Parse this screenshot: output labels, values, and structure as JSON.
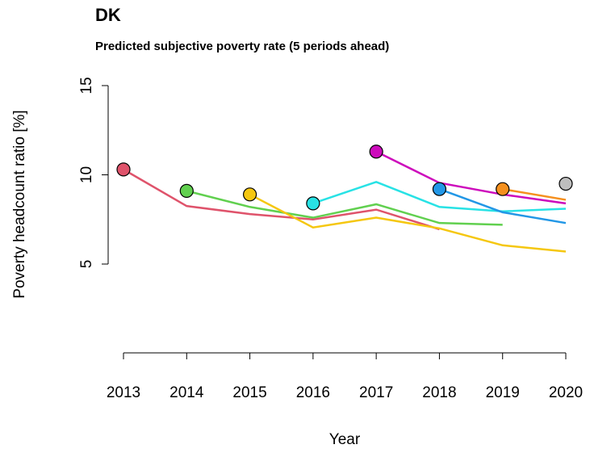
{
  "chart_data": {
    "type": "line",
    "title": "DK",
    "subtitle": "Predicted subjective poverty rate (5 periods ahead)",
    "x_label": "Year",
    "y_label": "Poverty headcount ratio [%]",
    "x": [
      2013,
      2014,
      2015,
      2016,
      2017,
      2018,
      2019,
      2020
    ],
    "xlim": [
      2013,
      2020
    ],
    "xticks": [
      2013,
      2014,
      2015,
      2016,
      2017,
      2018,
      2019,
      2020
    ],
    "ylim": [
      0,
      15
    ],
    "yticks": [
      5,
      10,
      15
    ],
    "series": [
      {
        "color": "#DF536B",
        "values": [
          10.3,
          8.25,
          7.8,
          7.5,
          8.05,
          6.95,
          null,
          null
        ]
      },
      {
        "color": "#61D04F",
        "values": [
          null,
          9.1,
          8.2,
          7.6,
          8.35,
          7.3,
          7.2,
          null
        ]
      },
      {
        "color": "#F5C710",
        "values": [
          null,
          null,
          8.9,
          7.05,
          7.6,
          7.0,
          6.05,
          5.7
        ]
      },
      {
        "color": "#28E2E5",
        "values": [
          null,
          null,
          null,
          8.4,
          9.6,
          8.2,
          7.95,
          8.1
        ]
      },
      {
        "color": "#CD0BBC",
        "values": [
          null,
          null,
          null,
          null,
          11.3,
          9.55,
          8.9,
          8.4
        ]
      },
      {
        "color": "#2297E6",
        "values": [
          null,
          null,
          null,
          null,
          null,
          9.2,
          7.9,
          7.3
        ]
      },
      {
        "color": "#F5901E",
        "values": [
          null,
          null,
          null,
          null,
          null,
          null,
          9.2,
          8.6
        ]
      },
      {
        "color": "#BEBEBE",
        "values": [
          null,
          null,
          null,
          null,
          null,
          null,
          null,
          9.5
        ]
      }
    ]
  }
}
